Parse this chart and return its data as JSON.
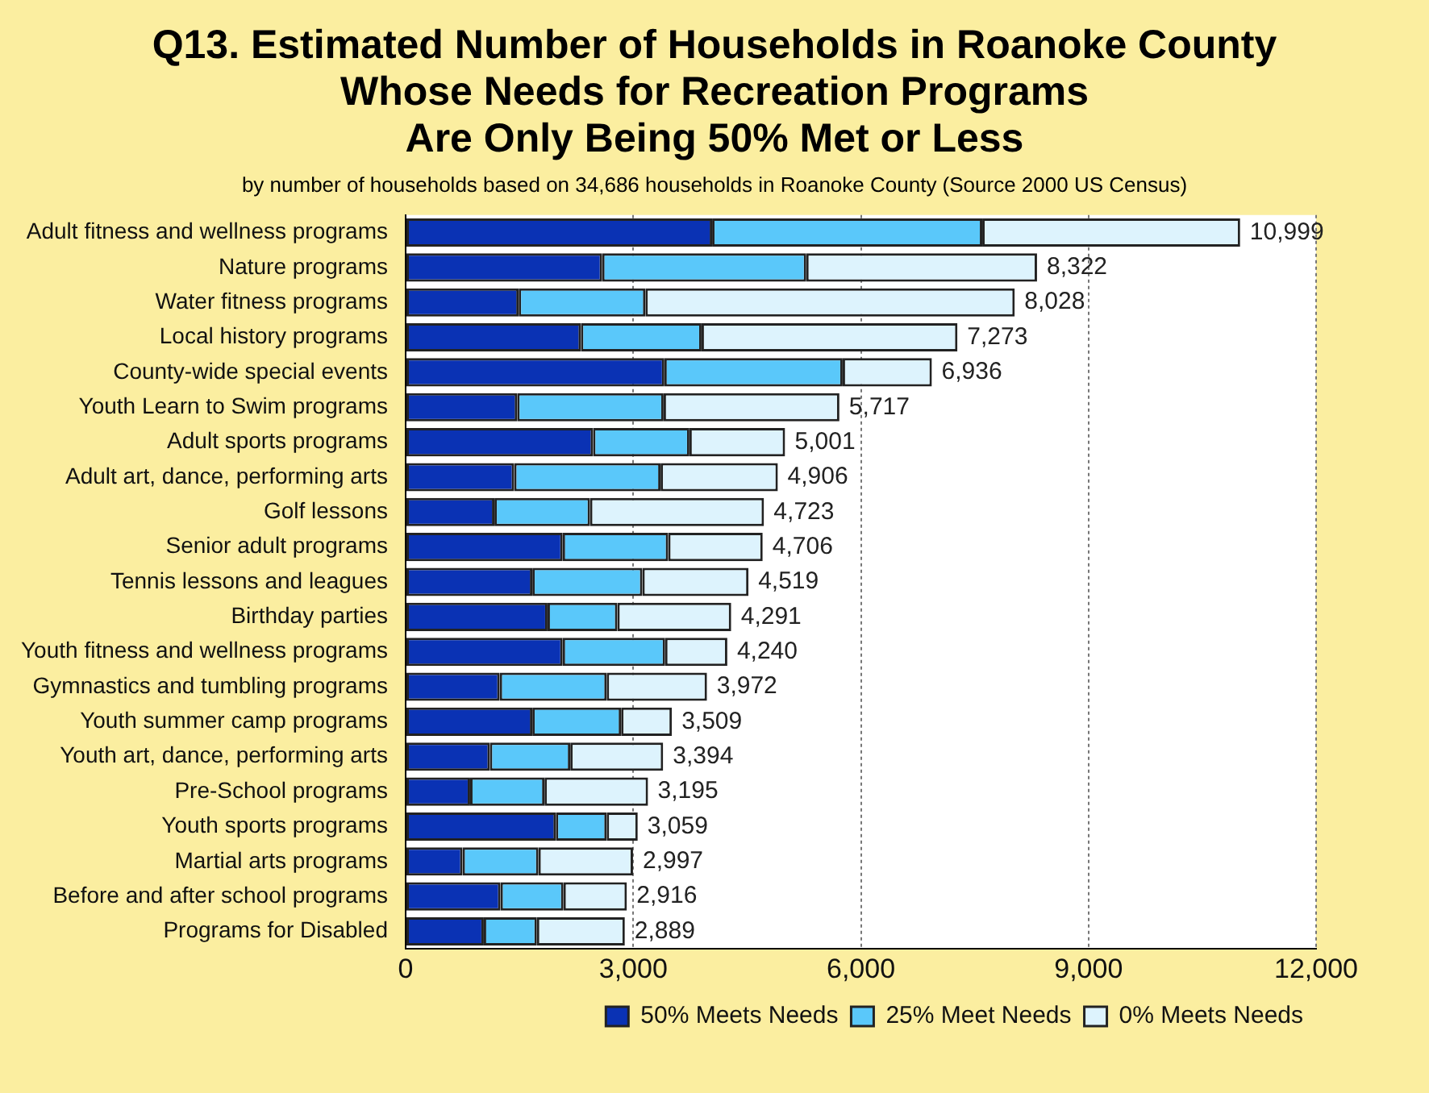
{
  "chart_data": {
    "type": "bar",
    "orientation": "horizontal",
    "stacked": true,
    "title": "Q13. Estimated Number of Households in Roanoke County\nWhose Needs for Recreation Programs\nAre Only Being 50% Met or Less",
    "subtitle": "by number of households based on 34,686 households in Roanoke County (Source 2000 US Census)",
    "categories": [
      "Adult fitness and wellness programs",
      "Nature programs",
      "Water fitness programs",
      "Local history programs",
      "County-wide special events",
      "Youth Learn to Swim programs",
      "Adult sports programs",
      "Adult art, dance, performing arts",
      "Golf lessons",
      "Senior adult programs",
      "Tennis lessons and leagues",
      "Birthday parties",
      "Youth fitness and wellness programs",
      "Gymnastics and tumbling programs",
      "Youth summer camp programs",
      "Youth art, dance, performing arts",
      "Pre-School programs",
      "Youth sports programs",
      "Martial arts programs",
      "Before and after school programs",
      "Programs for Disabled"
    ],
    "series": [
      {
        "name": "50% Meets Needs",
        "color": "#0a32b4",
        "values": [
          4040,
          2590,
          1490,
          2310,
          3410,
          1470,
          2470,
          1430,
          1170,
          2070,
          1670,
          1870,
          2070,
          1240,
          1670,
          1110,
          850,
          1980,
          750,
          1250,
          1030
        ]
      },
      {
        "name": "25% Meet Needs",
        "color": "#5ac8fa",
        "values": [
          3560,
          2690,
          1670,
          1590,
          2350,
          1930,
          1270,
          1930,
          1260,
          1390,
          1450,
          920,
          1350,
          1410,
          1170,
          1060,
          980,
          670,
          1000,
          830,
          700
        ]
      },
      {
        "name": "0% Meets Needs",
        "color": "#ddf3fd",
        "values": [
          3399,
          3042,
          4868,
          3373,
          1176,
          2317,
          1261,
          1546,
          2293,
          1246,
          1399,
          1501,
          820,
          1322,
          669,
          1224,
          1365,
          409,
          1247,
          836,
          1159
        ]
      }
    ],
    "totals": [
      "10,999",
      "8,322",
      "8,028",
      "7,273",
      "6,936",
      "5,717",
      "5,001",
      "4,906",
      "4,723",
      "4,706",
      "4,519",
      "4,291",
      "4,240",
      "3,972",
      "3,509",
      "3,394",
      "3,195",
      "3,059",
      "2,997",
      "2,916",
      "2,889"
    ],
    "xlim": [
      0,
      12000
    ],
    "xticks": [
      {
        "value": 0,
        "label": "0"
      },
      {
        "value": 3000,
        "label": "3,000"
      },
      {
        "value": 6000,
        "label": "6,000"
      },
      {
        "value": 9000,
        "label": "9,000"
      },
      {
        "value": 12000,
        "label": "12,000"
      }
    ],
    "grid": "x",
    "legend": "bottom"
  }
}
